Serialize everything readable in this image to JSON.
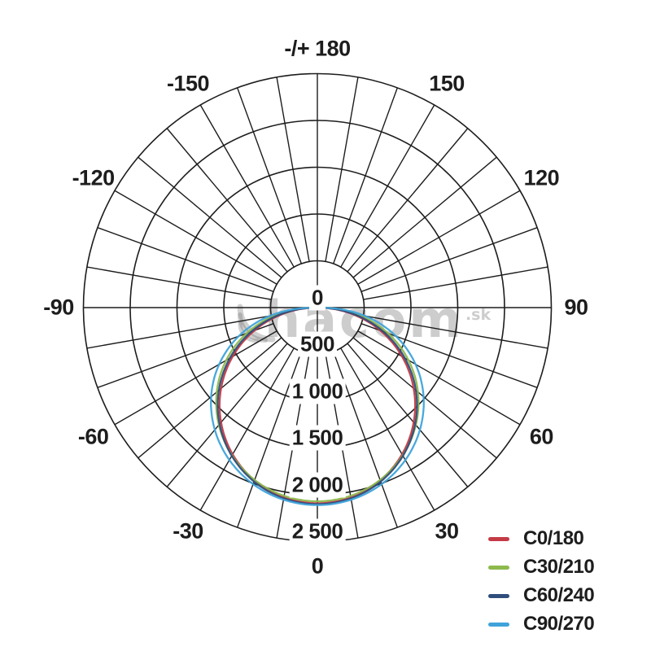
{
  "watermark": {
    "text": "hacom",
    "suffix": ".sk"
  },
  "chart_data": {
    "type": "line",
    "subtype": "polar_luminous_intensity_distribution",
    "title": "",
    "radial_unit": "cd",
    "radial_max": 2500,
    "radial_ticks": [
      {
        "label": "0",
        "value": 0
      },
      {
        "label": "500",
        "value": 500
      },
      {
        "label": "1 000",
        "value": 1000
      },
      {
        "label": "1 500",
        "value": 1500
      },
      {
        "label": "2 000",
        "value": 2000
      },
      {
        "label": "2 500",
        "value": 2500
      }
    ],
    "angle_grid_step_deg": 10,
    "angle_ticks": [
      {
        "text": "-/+ 180",
        "deg": 180
      },
      {
        "text": "-150",
        "deg": -150
      },
      {
        "text": "150",
        "deg": 150
      },
      {
        "text": "-120",
        "deg": -120
      },
      {
        "text": "120",
        "deg": 120
      },
      {
        "text": "-90",
        "deg": -90
      },
      {
        "text": "90",
        "deg": 90
      },
      {
        "text": "-60",
        "deg": -60
      },
      {
        "text": "60",
        "deg": 60
      },
      {
        "text": "-30",
        "deg": -30
      },
      {
        "text": "30",
        "deg": 30
      },
      {
        "text": "0",
        "deg": 0
      }
    ],
    "series": [
      {
        "name": "C0/180",
        "color": "#c43b46",
        "model": {
          "peak_cd": 2090,
          "cos_exponent": 1.0
        },
        "samples": {
          "angles_deg": [
            -90,
            -80,
            -70,
            -60,
            -50,
            -40,
            -30,
            -20,
            -10,
            0,
            10,
            20,
            30,
            40,
            50,
            60,
            70,
            80,
            90
          ],
          "candela": [
            0,
            364,
            715,
            1045,
            1344,
            1601,
            1810,
            1965,
            2059,
            2090,
            2059,
            1965,
            1810,
            1601,
            1344,
            1045,
            715,
            364,
            0
          ]
        }
      },
      {
        "name": "C30/210",
        "color": "#8db94d",
        "model": {
          "peak_cd": 2070,
          "cos_exponent": 0.88
        },
        "samples": {
          "angles_deg": [
            -90,
            -80,
            -70,
            -60,
            -50,
            -40,
            -30,
            -20,
            -10,
            0,
            10,
            20,
            30,
            40,
            50,
            60,
            70,
            80,
            90
          ],
          "candela": [
            0,
            445,
            805,
            1124,
            1403,
            1637,
            1824,
            1960,
            2043,
            2070,
            2043,
            1960,
            1824,
            1637,
            1403,
            1124,
            805,
            445,
            0
          ]
        }
      },
      {
        "name": "C60/240",
        "color": "#2f4e7c",
        "model": {
          "peak_cd": 2100,
          "cos_exponent": 0.96
        },
        "samples": {
          "angles_deg": [
            -90,
            -80,
            -70,
            -60,
            -50,
            -40,
            -30,
            -20,
            -10,
            0,
            10,
            20,
            30,
            40,
            50,
            60,
            70,
            80,
            90
          ],
          "candela": [
            0,
            392,
            750,
            1079,
            1375,
            1626,
            1829,
            1979,
            2070,
            2100,
            2070,
            1979,
            1829,
            1626,
            1375,
            1079,
            750,
            392,
            0
          ]
        }
      },
      {
        "name": "C90/270",
        "color": "#3fa3da",
        "model": {
          "peak_cd": 2110,
          "cos_exponent": 0.8
        },
        "samples": {
          "angles_deg": [
            -90,
            -80,
            -70,
            -60,
            -50,
            -40,
            -30,
            -20,
            -10,
            0,
            10,
            20,
            30,
            40,
            50,
            60,
            70,
            80,
            90
          ],
          "candela": [
            0,
            521,
            895,
            1211,
            1482,
            1705,
            1881,
            2008,
            2085,
            2110,
            2085,
            2008,
            1881,
            1705,
            1482,
            1211,
            895,
            521,
            0
          ]
        }
      }
    ],
    "layout": {
      "zero_angle_position": "bottom",
      "grid": true,
      "legend_position": "bottom-right"
    }
  }
}
